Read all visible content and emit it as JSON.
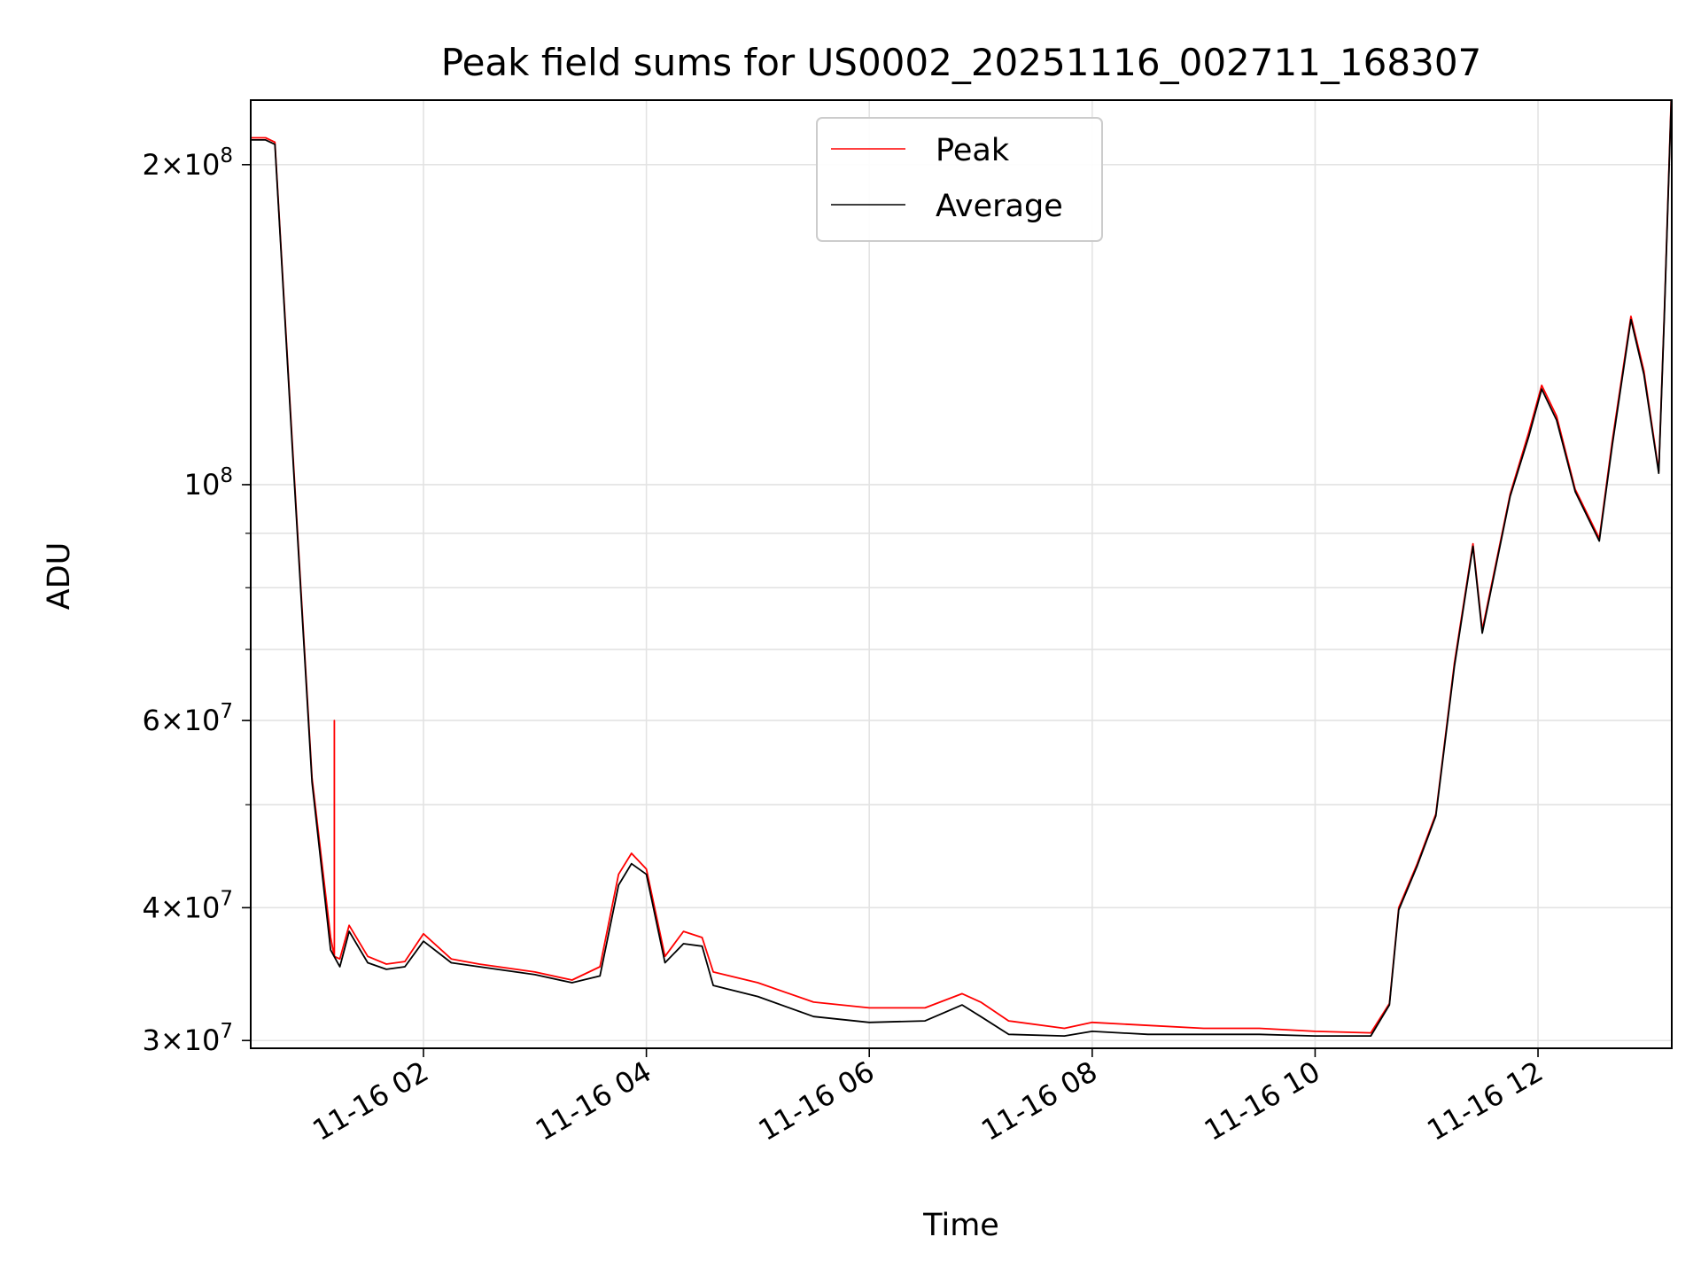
{
  "chart_data": {
    "type": "line",
    "title": "Peak field sums for US0002_20251116_002711_168307",
    "xlabel": "Time",
    "ylabel": "ADU",
    "yscale": "log",
    "xlim": [
      "2025-11-16 00:27",
      "2025-11-16 13:12"
    ],
    "ylim": [
      29500000,
      230000000
    ],
    "grid": true,
    "legend": {
      "placement": "top-center",
      "entries": [
        "Peak",
        "Average"
      ]
    },
    "x_ticks": [
      "11-16 02",
      "11-16 04",
      "11-16 06",
      "11-16 08",
      "11-16 10",
      "11-16 12"
    ],
    "y_ticks": [
      {
        "value": 30000000,
        "base": "3",
        "exp": "7"
      },
      {
        "value": 40000000,
        "base": "4",
        "exp": "7"
      },
      {
        "value": 60000000,
        "base": "6",
        "exp": "7"
      },
      {
        "value": 100000000,
        "base": "",
        "exp": "8"
      },
      {
        "value": 200000000,
        "base": "2",
        "exp": "8"
      }
    ],
    "colors": {
      "Peak": "#ff0000",
      "Average": "#000000"
    },
    "series": [
      {
        "name": "Peak",
        "x": [
          "2025-11-16 00:27",
          "2025-11-16 00:35",
          "2025-11-16 00:40",
          "2025-11-16 00:50",
          "2025-11-16 01:00",
          "2025-11-16 01:10",
          "2025-11-16 01:12",
          "2025-11-16 01:12",
          "2025-11-16 01:12",
          "2025-11-16 01:15",
          "2025-11-16 01:20",
          "2025-11-16 01:30",
          "2025-11-16 01:40",
          "2025-11-16 01:50",
          "2025-11-16 02:00",
          "2025-11-16 02:15",
          "2025-11-16 02:30",
          "2025-11-16 03:00",
          "2025-11-16 03:20",
          "2025-11-16 03:35",
          "2025-11-16 03:45",
          "2025-11-16 03:52",
          "2025-11-16 04:00",
          "2025-11-16 04:10",
          "2025-11-16 04:20",
          "2025-11-16 04:30",
          "2025-11-16 04:36",
          "2025-11-16 05:00",
          "2025-11-16 05:30",
          "2025-11-16 06:00",
          "2025-11-16 06:30",
          "2025-11-16 06:50",
          "2025-11-16 07:00",
          "2025-11-16 07:15",
          "2025-11-16 07:45",
          "2025-11-16 08:00",
          "2025-11-16 08:30",
          "2025-11-16 09:00",
          "2025-11-16 09:30",
          "2025-11-16 10:00",
          "2025-11-16 10:30",
          "2025-11-16 10:40",
          "2025-11-16 10:45",
          "2025-11-16 10:55",
          "2025-11-16 11:05",
          "2025-11-16 11:15",
          "2025-11-16 11:25",
          "2025-11-16 11:30",
          "2025-11-16 11:45",
          "2025-11-16 11:55",
          "2025-11-16 12:02",
          "2025-11-16 12:10",
          "2025-11-16 12:20",
          "2025-11-16 12:33",
          "2025-11-16 12:40",
          "2025-11-16 12:50",
          "2025-11-16 12:57",
          "2025-11-16 13:05",
          "2025-11-16 13:08",
          "2025-11-16 13:12"
        ],
        "y": [
          212000000,
          212000000,
          210000000,
          105000000,
          53000000,
          37500000,
          36000000,
          60000000,
          36000000,
          35800000,
          38500000,
          36000000,
          35400000,
          35600000,
          37800000,
          35800000,
          35400000,
          34800000,
          34200000,
          35200000,
          43000000,
          45000000,
          43500000,
          36000000,
          38000000,
          37500000,
          34800000,
          34000000,
          32600000,
          32200000,
          32200000,
          33200000,
          32600000,
          31300000,
          30800000,
          31200000,
          31000000,
          30800000,
          30800000,
          30600000,
          30500000,
          32500000,
          40000000,
          44000000,
          49000000,
          68000000,
          88000000,
          73000000,
          98000000,
          112000000,
          124000000,
          116000000,
          99000000,
          89000000,
          110000000,
          144000000,
          128000000,
          103000000,
          145000000,
          240000000
        ]
      },
      {
        "name": "Average",
        "x": [
          "2025-11-16 00:27",
          "2025-11-16 00:35",
          "2025-11-16 00:40",
          "2025-11-16 00:50",
          "2025-11-16 01:00",
          "2025-11-16 01:10",
          "2025-11-16 01:15",
          "2025-11-16 01:20",
          "2025-11-16 01:30",
          "2025-11-16 01:40",
          "2025-11-16 01:50",
          "2025-11-16 02:00",
          "2025-11-16 02:15",
          "2025-11-16 02:30",
          "2025-11-16 03:00",
          "2025-11-16 03:20",
          "2025-11-16 03:35",
          "2025-11-16 03:45",
          "2025-11-16 03:52",
          "2025-11-16 04:00",
          "2025-11-16 04:10",
          "2025-11-16 04:20",
          "2025-11-16 04:30",
          "2025-11-16 04:36",
          "2025-11-16 05:00",
          "2025-11-16 05:30",
          "2025-11-16 06:00",
          "2025-11-16 06:30",
          "2025-11-16 06:50",
          "2025-11-16 07:00",
          "2025-11-16 07:15",
          "2025-11-16 07:45",
          "2025-11-16 08:00",
          "2025-11-16 08:30",
          "2025-11-16 09:00",
          "2025-11-16 09:30",
          "2025-11-16 10:00",
          "2025-11-16 10:30",
          "2025-11-16 10:40",
          "2025-11-16 10:45",
          "2025-11-16 10:55",
          "2025-11-16 11:05",
          "2025-11-16 11:15",
          "2025-11-16 11:25",
          "2025-11-16 11:30",
          "2025-11-16 11:45",
          "2025-11-16 11:55",
          "2025-11-16 12:02",
          "2025-11-16 12:10",
          "2025-11-16 12:20",
          "2025-11-16 12:33",
          "2025-11-16 12:40",
          "2025-11-16 12:50",
          "2025-11-16 12:57",
          "2025-11-16 13:05",
          "2025-11-16 13:08",
          "2025-11-16 13:12"
        ],
        "y": [
          211000000,
          211000000,
          209000000,
          104000000,
          52500000,
          36500000,
          35200000,
          38000000,
          35500000,
          35000000,
          35200000,
          37200000,
          35500000,
          35200000,
          34600000,
          34000000,
          34500000,
          42000000,
          44000000,
          43000000,
          35500000,
          37000000,
          36800000,
          33800000,
          33000000,
          31600000,
          31200000,
          31300000,
          32400000,
          31600000,
          30400000,
          30300000,
          30600000,
          30400000,
          30400000,
          30400000,
          30300000,
          30300000,
          32400000,
          39800000,
          43800000,
          48800000,
          67500000,
          87500000,
          72500000,
          97500000,
          111000000,
          123000000,
          115000000,
          98500000,
          88500000,
          109000000,
          143000000,
          127000000,
          102500000,
          144000000,
          238000000
        ]
      }
    ]
  }
}
